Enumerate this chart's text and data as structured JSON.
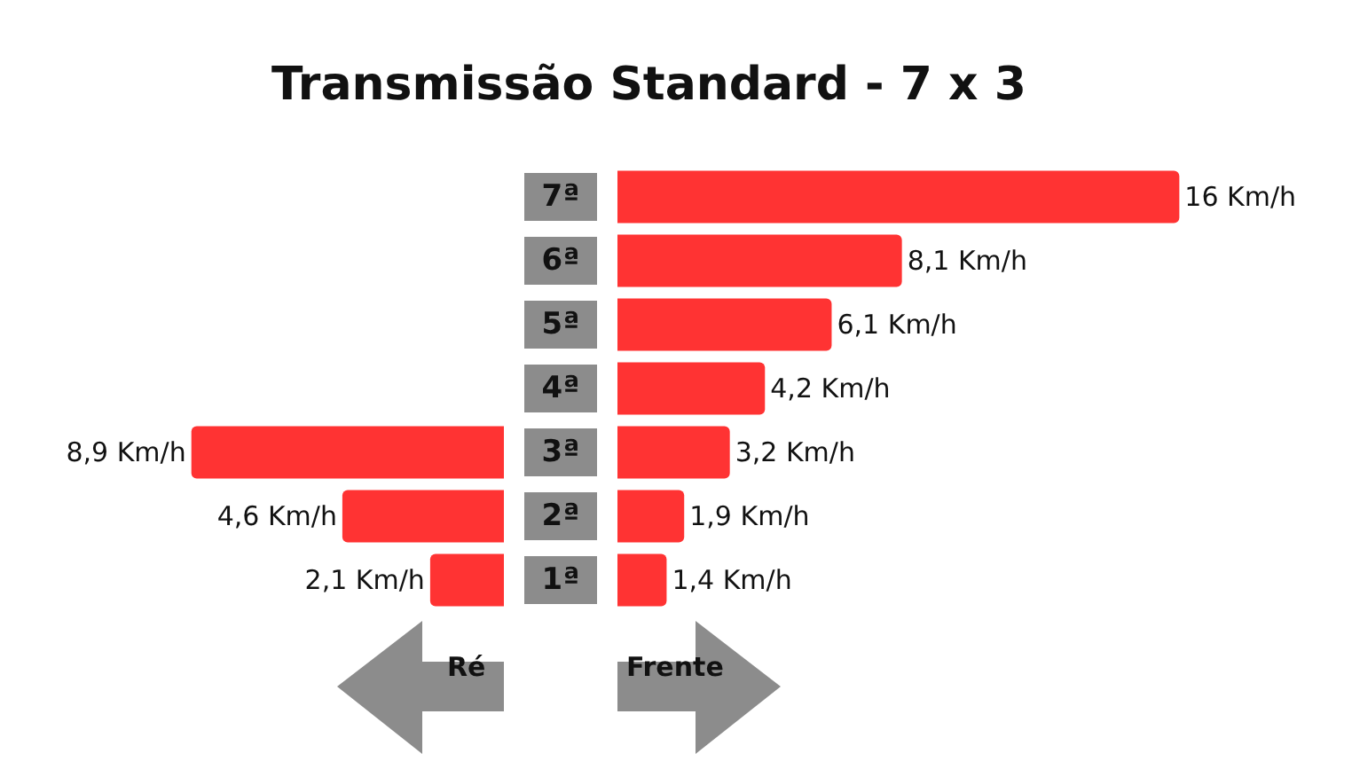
{
  "chart_data": [
    {
      "type": "bar",
      "orientation": "horizontal",
      "title": "Transmissão Standard - 7 x 3",
      "categories": [
        null,
        null,
        null,
        null,
        null,
        null,
        null
      ],
      "series": [
        {
          "color": "#ff3333",
          "values": [
            null,
            null,
            null,
            null,
            8.9,
            4.6,
            2.1
          ],
          "value_labels": [
            null,
            null,
            null,
            null,
            "8,9 Km/h",
            "4,6 Km/h",
            "2,1 Km/h"
          ]
        }
      ],
      "annotations": [
        "Ré"
      ],
      "tick_labels": false
    },
    {
      "type": "bar",
      "orientation": "horizontal",
      "categories": [
        "7ª",
        "6ª",
        "5ª",
        "4ª",
        "3ª",
        "2ª",
        "1ª"
      ],
      "series": [
        {
          "color": "#ff3333",
          "values": [
            16,
            8.1,
            6.1,
            4.2,
            3.2,
            1.9,
            1.4
          ],
          "value_labels": [
            "16 Km/h",
            "8,1 Km/h",
            "6,1 Km/h",
            "4,2 Km/h",
            "3,2 Km/h",
            "1,9 Km/h",
            "1,4 Km/h"
          ]
        }
      ],
      "annotations": [
        "Frente"
      ],
      "tick_labels": false
    }
  ]
}
